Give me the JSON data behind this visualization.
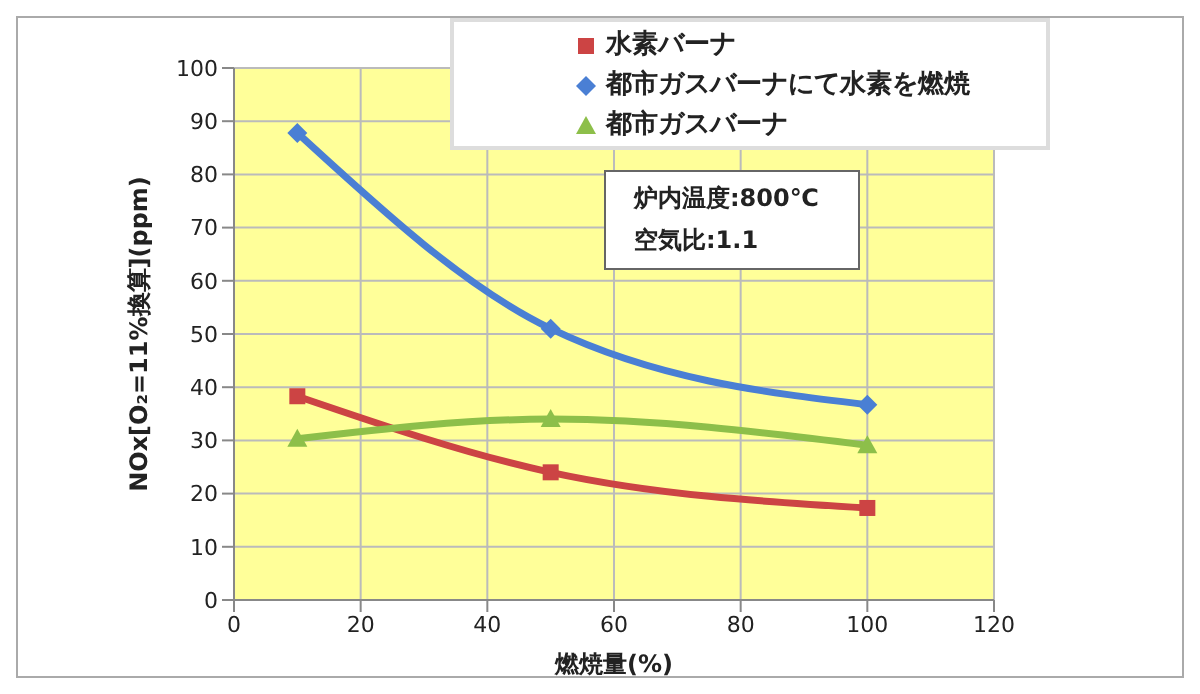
{
  "chart_data": {
    "type": "line",
    "xlabel": "燃焼量(%)",
    "ylabel": "NOx[O₂=11%換算](ppm)",
    "x": [
      10,
      50,
      100
    ],
    "series": [
      {
        "name": "水素バーナ",
        "color": "#cc4444",
        "marker": "square",
        "values": [
          38.3,
          24,
          17.3
        ]
      },
      {
        "name": "都市ガスバーナにて水素を燃焼",
        "color": "#4a7fd4",
        "marker": "diamond",
        "values": [
          87.8,
          51,
          36.7
        ]
      },
      {
        "name": "都市ガスバーナ",
        "color": "#8dbf4a",
        "marker": "triangle",
        "values": [
          30.3,
          34,
          29.1
        ]
      }
    ],
    "xlim": [
      0,
      120
    ],
    "xticks": [
      0,
      20,
      40,
      60,
      80,
      100,
      120
    ],
    "ylim": [
      0,
      100
    ],
    "yticks": [
      0,
      10,
      20,
      30,
      40,
      50,
      60,
      70,
      80,
      90,
      100
    ],
    "grid": true,
    "legend": "top right",
    "line_style": "solid",
    "annotations": [
      "炉内温度:800℃",
      "空気比:1.1"
    ]
  }
}
